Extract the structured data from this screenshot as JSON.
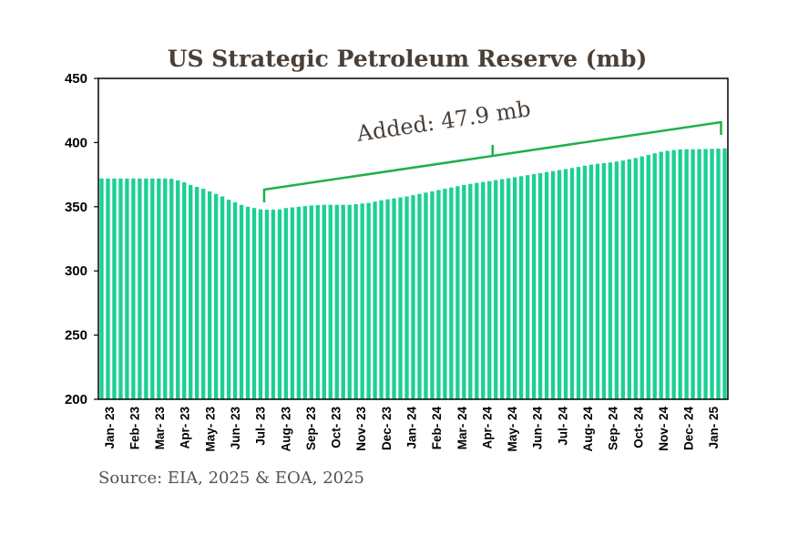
{
  "chart_data": {
    "type": "bar",
    "title": "US Strategic Petroleum Reserve (mb)",
    "source": "Source: EIA, 2025 & EOA, 2025",
    "ylim": [
      200,
      450
    ],
    "yticks": [
      200,
      250,
      300,
      350,
      400,
      450
    ],
    "xlabel": "",
    "ylabel": "",
    "grid": false,
    "bar_color": "#1ccf95",
    "annotation": {
      "text": "Added: 47.9 mb",
      "color": "#1fb04a"
    },
    "month_labels": [
      "Jan- 23",
      "Feb- 23",
      "Mar- 23",
      "Apr- 23",
      "May- 23",
      "Jun- 23",
      "Jul- 23",
      "Aug- 23",
      "Sep- 23",
      "Oct- 23",
      "Nov- 23",
      "Dec- 23",
      "Jan- 24",
      "Feb- 24",
      "Mar- 24",
      "Apr- 24",
      "May- 24",
      "Jun- 24",
      "Jul- 24",
      "Aug- 24",
      "Sep- 24",
      "Oct- 24",
      "Nov- 24",
      "Dec- 24",
      "Jan- 25"
    ],
    "values": [
      372.0,
      372.0,
      372.0,
      372.0,
      372.0,
      372.0,
      372.0,
      372.0,
      372.0,
      372.0,
      372.0,
      371.8,
      370.5,
      369.0,
      367.0,
      365.5,
      364.0,
      362.0,
      360.0,
      358.0,
      355.5,
      353.5,
      351.5,
      350.0,
      349.0,
      348.0,
      347.7,
      347.7,
      348.0,
      349.0,
      349.5,
      350.0,
      350.5,
      351.0,
      351.3,
      351.5,
      351.5,
      351.5,
      351.5,
      351.5,
      352.0,
      352.5,
      353.0,
      354.0,
      355.0,
      355.8,
      356.5,
      357.3,
      358.0,
      359.0,
      360.0,
      361.0,
      362.0,
      363.0,
      364.0,
      365.0,
      366.0,
      367.0,
      367.8,
      368.6,
      369.3,
      370.0,
      370.8,
      371.5,
      372.2,
      373.0,
      373.8,
      374.6,
      375.4,
      376.2,
      377.0,
      377.8,
      378.6,
      379.4,
      380.2,
      381.0,
      382.0,
      382.8,
      383.5,
      384.0,
      384.5,
      385.2,
      386.0,
      387.0,
      388.0,
      389.2,
      390.4,
      391.6,
      392.8,
      393.6,
      394.2,
      394.6,
      394.8,
      394.8,
      394.9,
      395.0,
      395.1,
      395.3,
      395.5
    ]
  }
}
